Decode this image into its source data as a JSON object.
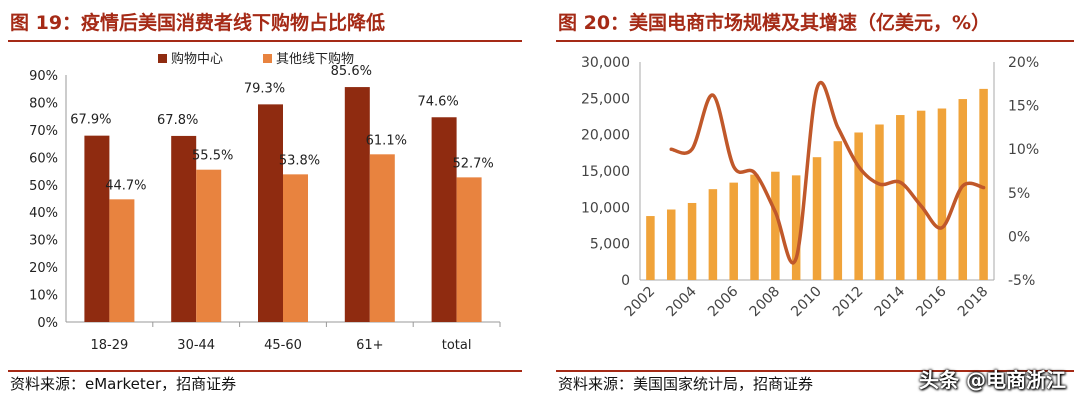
{
  "left": {
    "title": "图 19：疫情后美国消费者线下购物占比降低",
    "source": "资料来源：eMarketer，招商证券",
    "chart_data": {
      "type": "bar",
      "categories": [
        "18-29",
        "30-44",
        "45-60",
        "61+",
        "total"
      ],
      "series": [
        {
          "name": "购物中心",
          "values": [
            67.9,
            67.8,
            79.3,
            85.6,
            74.6
          ],
          "labels": [
            "67.9%",
            "67.8%",
            "79.3%",
            "85.6%",
            "74.6%"
          ],
          "color": "#8f2b10"
        },
        {
          "name": "其他线下购物",
          "values": [
            44.7,
            55.5,
            53.8,
            61.1,
            52.7
          ],
          "labels": [
            "44.7%",
            "55.5%",
            "53.8%",
            "61.1%",
            "52.7%"
          ],
          "color": "#e8833f"
        }
      ],
      "ylim": [
        0,
        90
      ],
      "yticks": [
        "0%",
        "10%",
        "20%",
        "30%",
        "40%",
        "50%",
        "60%",
        "70%",
        "80%",
        "90%"
      ],
      "legend": "top"
    }
  },
  "right": {
    "title": "图 20：美国电商市场规模及其增速（亿美元，%）",
    "source": "资料来源：美国国家统计局，招商证券",
    "watermark": "头条 @电商浙江",
    "chart_data": {
      "type": "bar",
      "x": [
        2002,
        2003,
        2004,
        2005,
        2006,
        2007,
        2008,
        2009,
        2010,
        2011,
        2012,
        2013,
        2014,
        2015,
        2016,
        2017,
        2018
      ],
      "xticks": [
        "2002",
        "2004",
        "2006",
        "2008",
        "2010",
        "2012",
        "2014",
        "2016",
        "2018"
      ],
      "series": [
        {
          "kind": "bar",
          "axis": "left",
          "values": [
            8800,
            9700,
            10600,
            12500,
            13400,
            14500,
            14900,
            14400,
            16900,
            19100,
            20300,
            21400,
            22700,
            23300,
            23600,
            24900,
            26300
          ],
          "color": "#f0a33a"
        },
        {
          "kind": "line",
          "axis": "right",
          "values": [
            null,
            10.0,
            10.0,
            16.2,
            8.0,
            7.3,
            2.8,
            -2.5,
            17.0,
            12.5,
            8.0,
            6.0,
            6.2,
            3.5,
            1.0,
            5.8,
            5.6
          ],
          "color": "#c0582a"
        }
      ],
      "ylim_left": [
        0,
        30000
      ],
      "ylim_right": [
        -5,
        20
      ],
      "yticks_left": [
        "0",
        "5,000",
        "10,000",
        "15,000",
        "20,000",
        "25,000",
        "30,000"
      ],
      "yticks_right": [
        "-5%",
        "0%",
        "5%",
        "10%",
        "15%",
        "20%"
      ]
    }
  }
}
